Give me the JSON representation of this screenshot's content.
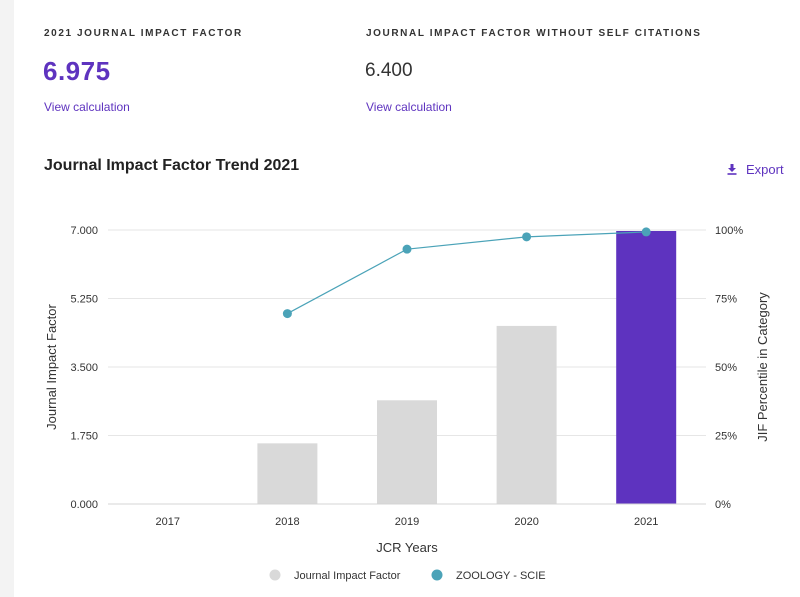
{
  "metrics": {
    "jif": {
      "label": "2021 JOURNAL IMPACT FACTOR",
      "value": "6.975",
      "link": "View calculation"
    },
    "jif_no_self": {
      "label": "JOURNAL IMPACT FACTOR WITHOUT SELF CITATIONS",
      "value": "6.400",
      "link": "View calculation"
    }
  },
  "trend": {
    "title": "Journal Impact Factor Trend 2021",
    "export_label": "Export"
  },
  "colors": {
    "accent": "#5e33bf",
    "bar_default": "#d9d9d9",
    "bar_highlight": "#5e33bf",
    "line": "#4ba3b8"
  },
  "icons": {
    "export": "download-icon"
  },
  "chart_data": {
    "type": "bar",
    "xlabel": "JCR Years",
    "ylabel": "Journal Impact Factor",
    "y2label": "JIF Percentile in Category",
    "categories": [
      "2017",
      "2018",
      "2019",
      "2020",
      "2021"
    ],
    "ylim": [
      0,
      7
    ],
    "y_ticks": [
      "0.000",
      "1.750",
      "3.500",
      "5.250",
      "7.000"
    ],
    "y2lim": [
      0,
      100
    ],
    "y2_ticks": [
      "0%",
      "25%",
      "50%",
      "75%",
      "100%"
    ],
    "highlight_category": "2021",
    "grid": true,
    "legend_position": "bottom-center",
    "series": [
      {
        "name": "Journal Impact Factor",
        "type": "bar",
        "axis": "left",
        "values": [
          null,
          1.55,
          2.65,
          4.55,
          6.975
        ]
      },
      {
        "name": "ZOOLOGY - SCIE",
        "type": "line",
        "axis": "right",
        "values": [
          null,
          69.5,
          93,
          97.5,
          99.3
        ]
      }
    ]
  }
}
